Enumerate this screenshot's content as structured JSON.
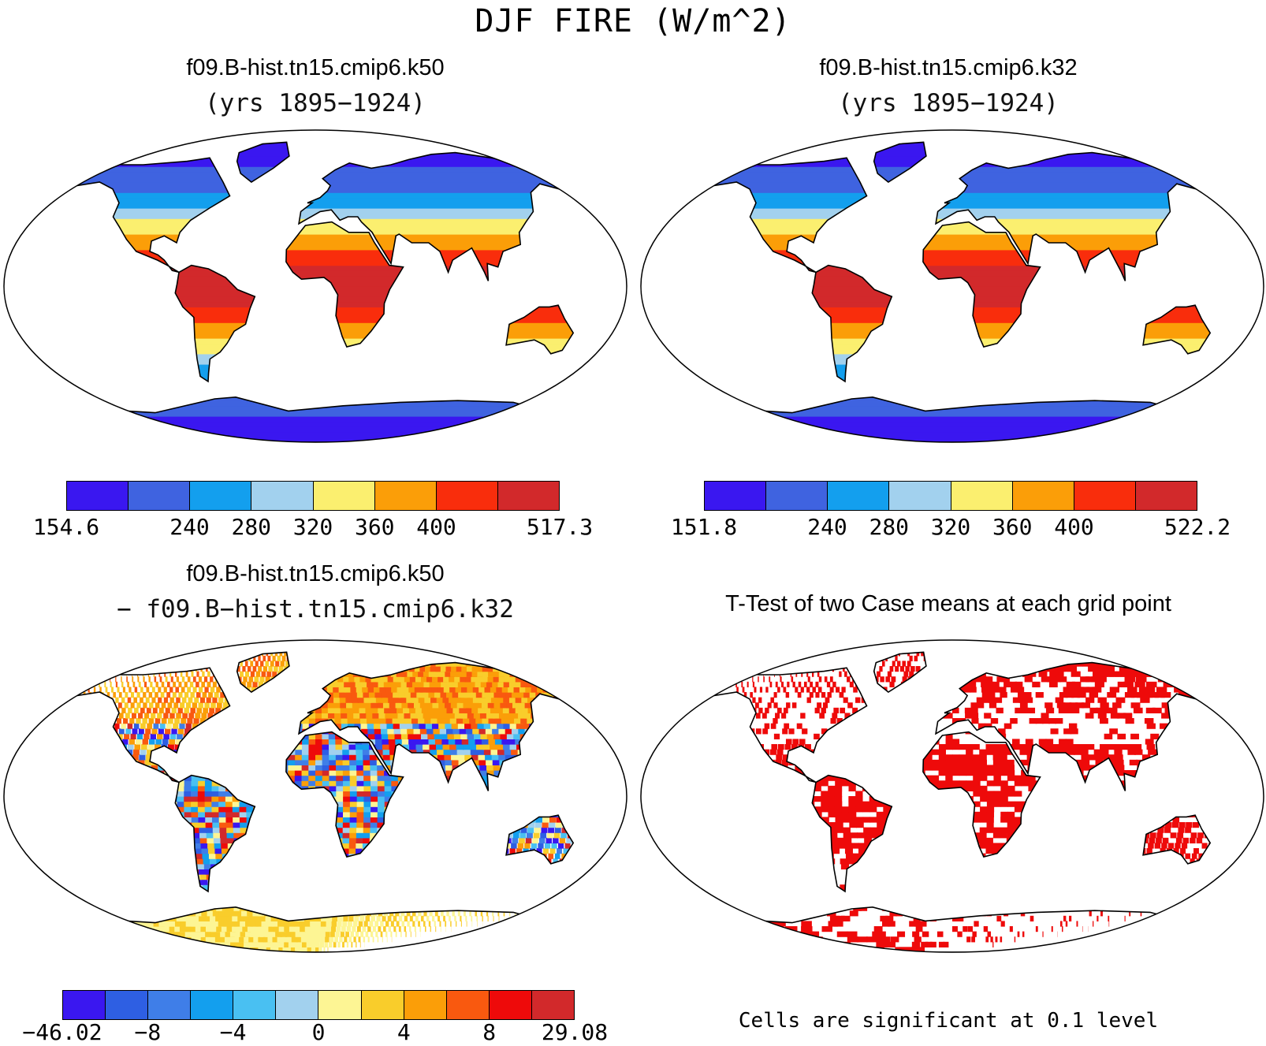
{
  "title": "DJF FIRE (W/m^2)",
  "panels": [
    {
      "title": "f09.B-hist.tn15.cmip6.k50",
      "subtitle": "(yrs 1895−1924)",
      "kind": "mean"
    },
    {
      "title": "f09.B-hist.tn15.cmip6.k32",
      "subtitle": "(yrs 1895−1924)",
      "kind": "mean"
    },
    {
      "title": "f09.B-hist.tn15.cmip6.k50",
      "subtitle": "− f09.B−hist.tn15.cmip6.k32",
      "kind": "diff"
    },
    {
      "title": "T-Test of two Case means at each grid point",
      "subtitle": "",
      "kind": "ttest"
    }
  ],
  "colorbars": [
    {
      "colors": [
        "#3a17f0",
        "#3f63e0",
        "#139fee",
        "#a2d1ee",
        "#fbef6f",
        "#fb9e08",
        "#f92d0c",
        "#d2292b"
      ],
      "labels": [
        "154.6",
        "",
        "240",
        "280",
        "320",
        "360",
        "400",
        "",
        "517.3"
      ]
    },
    {
      "colors": [
        "#3a17f0",
        "#3f63e0",
        "#139fee",
        "#a2d1ee",
        "#fbef6f",
        "#fb9e08",
        "#f92d0c",
        "#d2292b"
      ],
      "labels": [
        "151.8",
        "",
        "240",
        "280",
        "320",
        "360",
        "400",
        "",
        "522.2"
      ]
    },
    {
      "colors": [
        "#3a17f0",
        "#2e5fe3",
        "#3f7ee8",
        "#139fee",
        "#49c0f2",
        "#a2d1ee",
        "#fdf594",
        "#f9cd2b",
        "#fb9e08",
        "#f9590f",
        "#ee0a0a",
        "#d2292b"
      ],
      "labels": [
        "−46.02",
        "",
        "−8",
        "",
        "−4",
        "",
        "0",
        "",
        "4",
        "",
        "8",
        "",
        "29.08"
      ]
    }
  ],
  "ttest": {
    "note": "Cells are significant at 0.1 level",
    "color": "#ee0a0a"
  },
  "ocean_color": "#ffffff"
}
